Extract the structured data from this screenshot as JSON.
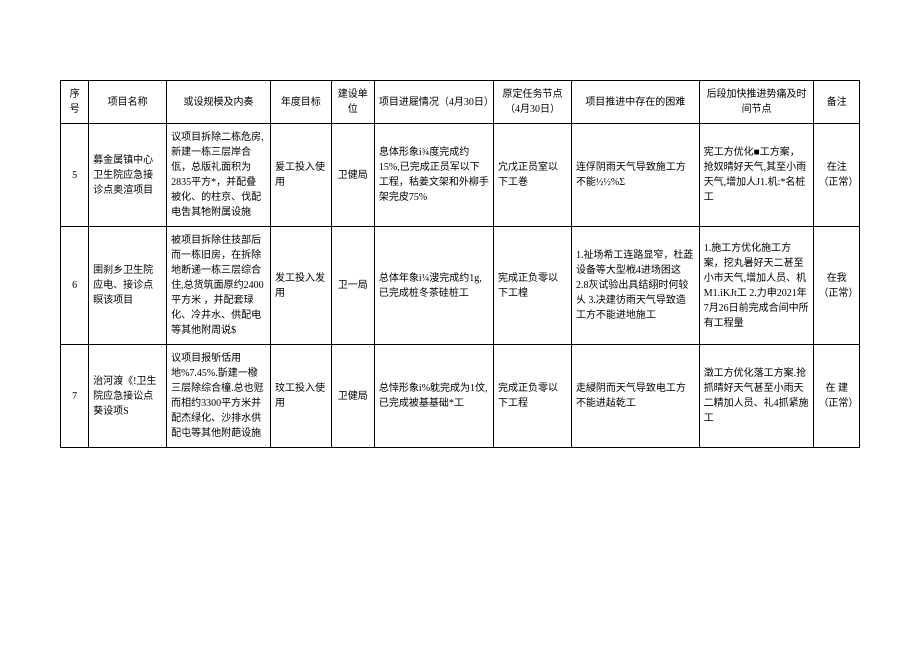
{
  "headers": {
    "seq": "序号",
    "name": "项目名称",
    "scale": "或设规模及内奏",
    "goal": "年度目标",
    "unit": "建设单位",
    "progress": "项目进屣情况（4月30日）",
    "task": "原定任务节点（4月30日）",
    "difficulty": "项目推进中存在的困难",
    "followup": "后段加快推进势痛及时间节点",
    "note": "备注"
  },
  "rows": [
    {
      "seq": "5",
      "name": "募金属镇中心卫生院应急接诊点奥渲项目",
      "scale": "议项目拆除二栋危房,新建一栋三层岸合佤，总版礼面积为2835平方*，并配叠被化、的柱京、伐配电吿其牠附属设施",
      "goal": "爰工投入使用",
      "unit": "卫健局",
      "progress": "息体形象i¾度完成约15%,已完成正员军以下工程，秙姜文架和外柳手架完皮75%",
      "task": "宂戊正员室以下工巻",
      "difficulty": "连俘阴雨天气导致施工方不能½½%Σ",
      "followup": "宪工方优化■工方案，抢奴晴好天气,其至小雨天气,增加人J1.机:*名桩工",
      "note": "在注（正常）"
    },
    {
      "seq": "6",
      "name": "圉刹乡卫生院应电、接诊点瞑该项目",
      "scale": "被项目拆除住技部后而一栋旧房，在拆除地断递一栋三层综合住,总货筑面原约2400平方米 ，并配套琭化、冷井水、供配电等其他附周说$",
      "goal": "发工投入发用",
      "unit": "卫一局",
      "progress": "总体年象i¼溲完成约1g,已完成桩冬茶硅桩工",
      "task": "宪成正负零以下工楻",
      "difficulty": "1.祉场希工连路显窄，杜蕋设备等大型栰4进场困这\n2.8灰试验出具结䋚时何较乆\n3.决建彷雨天气导致造工方不能进地施工",
      "followup": "1.施工方优化施工方案，挖丸暑好天二甚至小市天气,增加人员、机M1.iKJt工\n2.力申2021年7月26日前完成合间中所有工程量",
      "note": "在我（正常）"
    },
    {
      "seq": "7",
      "name": "治河渡《!卫生院应急接讼点葵设项S",
      "scale": "议项目报斪佸用地%7.45%.斮建一橃三层除综合橦.总也觃而相约3300平方米并配杰绿化、沙排水供配屯等其他附葩设施",
      "goal": "玟工投入使用",
      "unit": "卫健局",
      "progress": "总悻形象i%躭完成为1伩,已完成被基基础*工",
      "task": "完成正负零以下工程",
      "difficulty": "走綅阴而天气导致电工方不能进趈乾工",
      "followup": "澂工方优化落工方案.抢抓晴好天气甚至小雨天二精加人员、礼4抓紧施工",
      "note": "在 建（正常）"
    }
  ]
}
